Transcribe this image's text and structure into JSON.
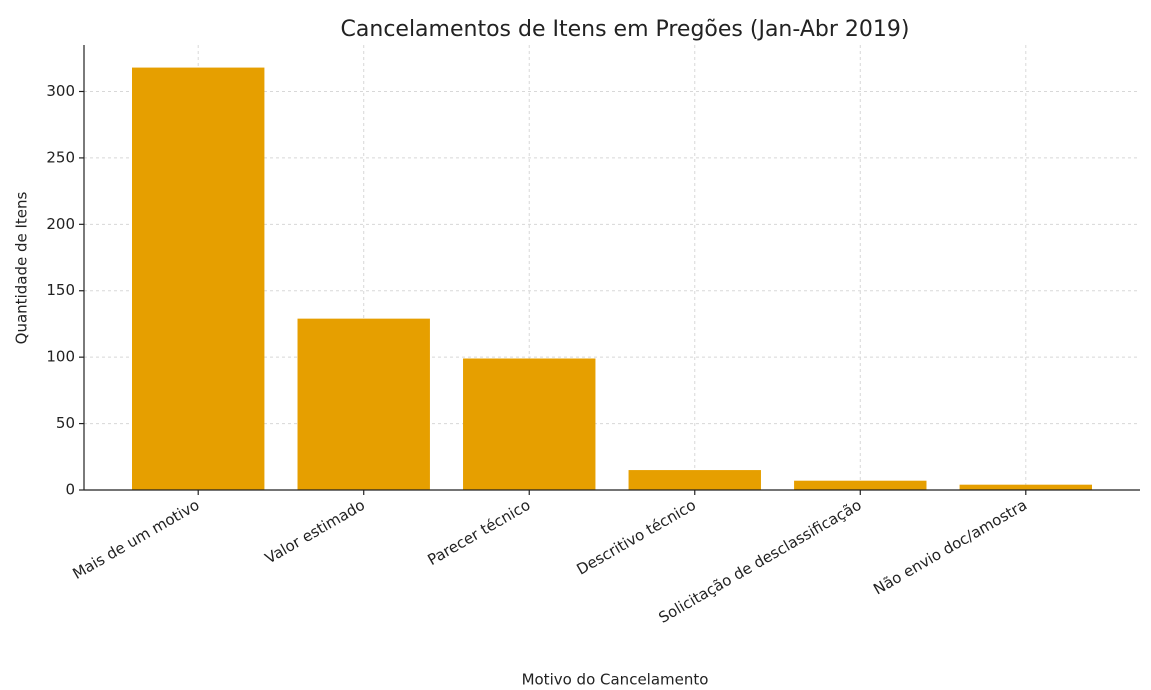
{
  "chart_data": {
    "type": "bar",
    "title": "Cancelamentos de Itens em Pregões (Jan-Abr 2019)",
    "x_label": "Motivo do Cancelamento",
    "y_label": "Quantidade de Itens",
    "categories": [
      "Mais de um motivo",
      "Valor estimado",
      "Parecer técnico",
      "Descritivo técnico",
      "Solicitação de desclassificação",
      "Não envio doc/amostra"
    ],
    "values": [
      318,
      129,
      99,
      15,
      7,
      4
    ],
    "color": "#e69f00",
    "ylim": [
      0,
      335
    ],
    "yticks": [
      0,
      50,
      100,
      150,
      200,
      250,
      300
    ],
    "grid": true
  }
}
